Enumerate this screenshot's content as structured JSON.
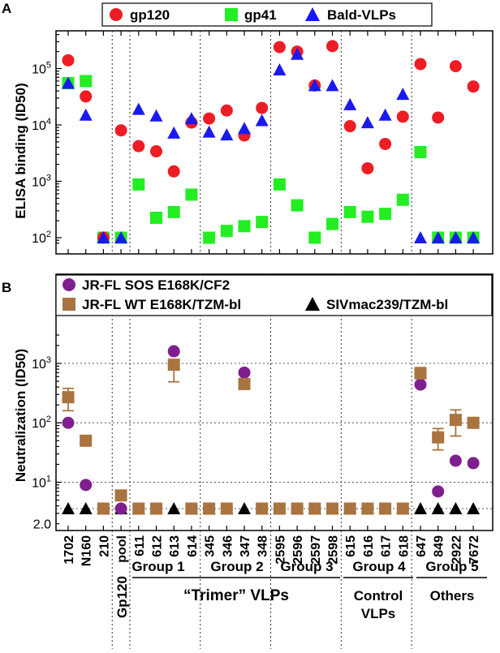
{
  "chart_data": [
    {
      "panel": "A",
      "type": "scatter",
      "ylabel": "ELISA binding (ID50)",
      "yscale": "log",
      "ylim": [
        75,
        400000
      ],
      "y_ticks": [
        {
          "value": 100,
          "base": "10",
          "exp": "2"
        },
        {
          "value": 1000,
          "base": "10",
          "exp": "3"
        },
        {
          "value": 10000,
          "base": "10",
          "exp": "4"
        },
        {
          "value": 100000,
          "base": "10",
          "exp": "5"
        }
      ],
      "legend": [
        "gp120",
        "gp41",
        "Bald-VLPs"
      ],
      "series": [
        {
          "name": "gp120",
          "marker": "circle",
          "color": "#ee1c24",
          "values": [
            140000,
            32000,
            100,
            8000,
            4200,
            3400,
            1500,
            11000,
            13000,
            18000,
            6500,
            20000,
            240000,
            200000,
            50000,
            250000,
            9500,
            1700,
            4600,
            14000,
            120000,
            13500,
            110000,
            48000
          ]
        },
        {
          "name": "gp41",
          "marker": "square",
          "color": "#22ee22",
          "values": [
            55000,
            60000,
            100,
            100,
            880,
            225,
            285,
            580,
            100,
            132,
            160,
            190,
            880,
            375,
            100,
            175,
            285,
            235,
            265,
            470,
            3300,
            100,
            100,
            100
          ]
        },
        {
          "name": "Bald-VLPs",
          "marker": "triangle",
          "color": "#1a1aee",
          "values": [
            55000,
            15000,
            100,
            100,
            19000,
            14500,
            7200,
            13000,
            7500,
            6700,
            8700,
            12000,
            95000,
            180000,
            50000,
            50000,
            23000,
            11000,
            15000,
            35000,
            100,
            100,
            100,
            100
          ]
        }
      ]
    },
    {
      "panel": "B",
      "type": "scatter",
      "ylabel": "Neutralization (ID50)",
      "yscale": "log",
      "ylim": [
        2,
        3000
      ],
      "y_ticks": [
        {
          "value": 2,
          "base": "",
          "exp": "",
          "plain": "2.0"
        },
        {
          "value": 10,
          "base": "10",
          "exp": "1"
        },
        {
          "value": 100,
          "base": "10",
          "exp": "2"
        },
        {
          "value": 1000,
          "base": "10",
          "exp": "3"
        }
      ],
      "legend": [
        "JR-FL SOS E168K/CF2",
        "JR-FL WT E168K/TZM-bl",
        "SIVmac239/TZM-bl"
      ],
      "series": [
        {
          "name": "JR-FL SOS E168K/CF2",
          "marker": "circle",
          "color": "#7f1f8f",
          "values": [
            100,
            9,
            3.6,
            3.6,
            3.6,
            3.6,
            1600,
            3.6,
            3.6,
            3.6,
            700,
            3.6,
            3.6,
            3.6,
            3.6,
            3.6,
            3.6,
            3.6,
            3.6,
            3.6,
            440,
            7,
            23,
            21
          ]
        },
        {
          "name": "JR-FL WT E168K/TZM-bl",
          "marker": "square",
          "color": "#a97440",
          "values": [
            270,
            50,
            3.6,
            6,
            3.6,
            3.6,
            950,
            3.6,
            3.6,
            3.6,
            450,
            3.6,
            3.6,
            3.6,
            3.6,
            3.6,
            3.6,
            3.6,
            3.6,
            3.6,
            680,
            57,
            112,
            100
          ],
          "error": [
            [
              160,
              380
            ],
            null,
            null,
            null,
            null,
            null,
            [
              490,
              1150
            ],
            null,
            null,
            null,
            null,
            null,
            null,
            null,
            null,
            null,
            null,
            null,
            null,
            null,
            [
              560,
              850
            ],
            [
              35,
              80
            ],
            [
              60,
              165
            ],
            null
          ]
        },
        {
          "name": "SIVmac239/TZM-bl",
          "marker": "triangle",
          "color": "#000000",
          "values": [
            3.6,
            3.6,
            3.6,
            3.6,
            3.6,
            3.6,
            3.6,
            3.6,
            3.6,
            3.6,
            3.6,
            3.6,
            3.6,
            3.6,
            3.6,
            3.6,
            3.6,
            3.6,
            3.6,
            3.6,
            3.6,
            3.6,
            3.6,
            3.6
          ]
        }
      ]
    }
  ],
  "categories": [
    "1702",
    "N160",
    "210",
    "pool",
    "611",
    "612",
    "613",
    "614",
    "345",
    "346",
    "347",
    "348",
    "2595",
    "2596",
    "2597",
    "2598",
    "615",
    "616",
    "617",
    "618",
    "647",
    "849",
    "2922",
    "7672"
  ],
  "group_labels": {
    "gp120": "Gp120",
    "g1": "Group 1",
    "g2": "Group 2",
    "g3": "Group 3",
    "g4": "Group 4",
    "g5": "Group 5",
    "trimer": "“Trimer” VLPs",
    "control_1": "Control",
    "control_2": "VLPs",
    "others": "Others"
  },
  "panel_labels": {
    "a": "A",
    "b": "B"
  },
  "colors": {
    "axis": "#000000",
    "grid": "#666666"
  }
}
